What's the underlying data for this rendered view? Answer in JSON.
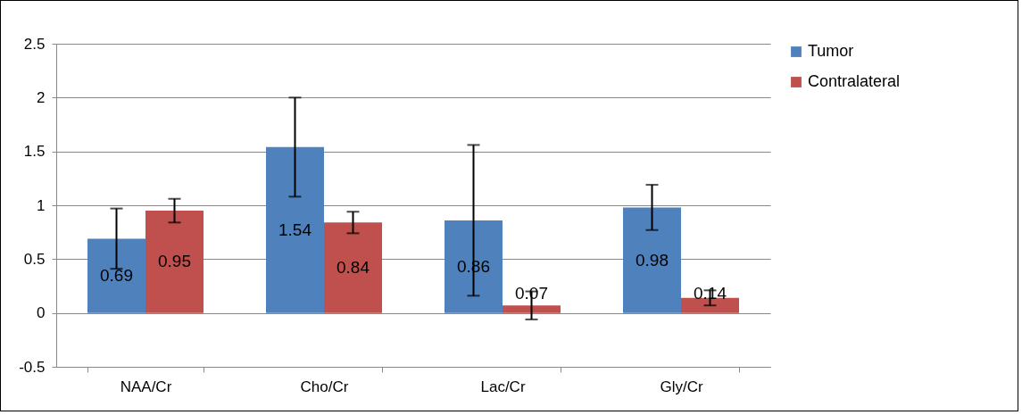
{
  "chart_data": {
    "type": "bar",
    "categories": [
      "NAA/Cr",
      "Cho/Cr",
      "Lac/Cr",
      "Gly/Cr"
    ],
    "series": [
      {
        "name": "Tumor",
        "color": "#4f81bd",
        "values": [
          0.69,
          1.54,
          0.86,
          0.98
        ],
        "errors": [
          0.28,
          0.46,
          0.7,
          0.21
        ]
      },
      {
        "name": "Contralateral",
        "color": "#c0504d",
        "values": [
          0.95,
          0.84,
          0.07,
          0.14
        ],
        "errors": [
          0.11,
          0.1,
          0.13,
          0.07
        ]
      }
    ],
    "ylim": [
      -0.5,
      2.5
    ],
    "yticks": [
      -0.5,
      0,
      0.5,
      1,
      1.5,
      2,
      2.5
    ],
    "grid": "y",
    "legend": "right",
    "data_labels": true
  }
}
